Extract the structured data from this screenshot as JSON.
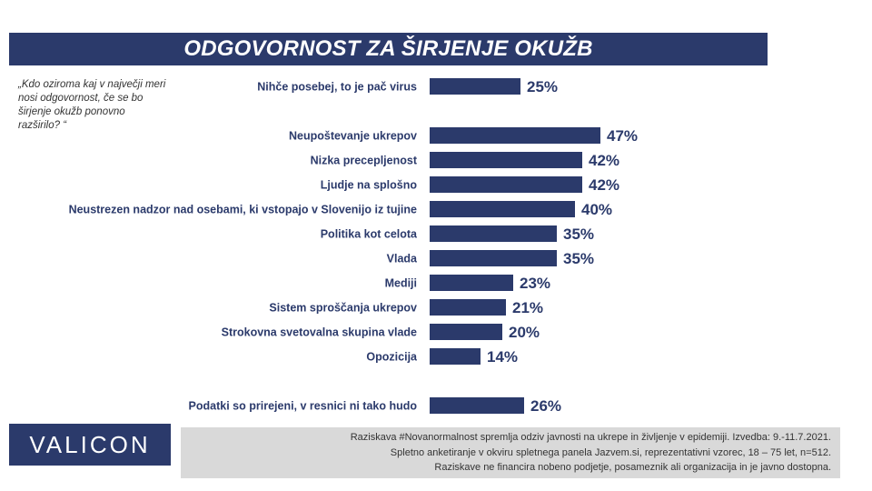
{
  "title": "ODGOVORNOST ZA ŠIRJENJE OKUŽB",
  "question": "„Kdo oziroma kaj v največji meri nosi odgovornost, če se bo širjenje okužb ponovno razširilo? “",
  "logo": "VALICON",
  "footer": {
    "line1": "Raziskava #Novanormalnost spremlja odziv javnosti na ukrepe in življenje v epidemiji. Izvedba: 9.-11.7.2021.",
    "line2": "Spletno anketiranje v okviru spletnega panela Jazvem.si, reprezentativni vzorec, 18 – 75 let, n=512.",
    "line3": "Raziskave ne financira nobeno podjetje, posameznik ali organizacija in je javno dostopna."
  },
  "colors": {
    "primary": "#2b3a6b",
    "footer_bg": "#d9d9d9"
  },
  "chart_data": {
    "type": "bar",
    "orientation": "horizontal",
    "title": "ODGOVORNOST ZA ŠIRJENJE OKUŽB",
    "value_suffix": "%",
    "categories": [
      "Nihče posebej, to je pač virus",
      "Neupoštevanje ukrepov",
      "Nizka precepljenost",
      "Ljudje na splošno",
      "Neustrezen nadzor nad osebami, ki vstopajo v Slovenijo iz tujine",
      "Politika kot celota",
      "Vlada",
      "Mediji",
      "Sistem sproščanja ukrepov",
      "Strokovna svetovalna skupina vlade",
      "Opozicija",
      "Podatki so prirejeni, v resnici ni tako hudo"
    ],
    "values": [
      25,
      47,
      42,
      42,
      40,
      35,
      35,
      23,
      21,
      20,
      14,
      26
    ],
    "grid": false
  }
}
